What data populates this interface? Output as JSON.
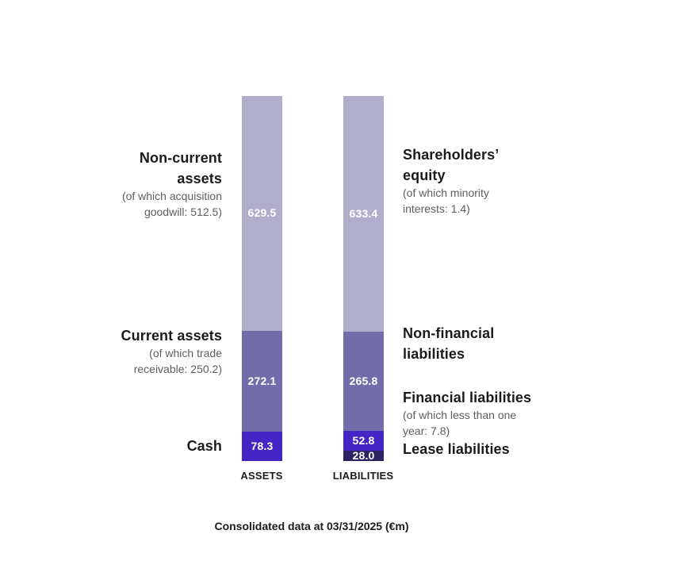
{
  "chart_data": {
    "type": "bar",
    "subtype": "stacked-column-balance-sheet",
    "caption": "Consolidated data at 03/31/2025 (€m)",
    "unit": "€m",
    "legend_position": "none",
    "grid": false,
    "categories": [
      "ASSETS",
      "LIABILITIES"
    ],
    "total_per_column": 980,
    "bars": [
      {
        "category": "ASSETS",
        "segments": [
          {
            "label": "Non-current assets",
            "note": "(of which acquisition goodwill: 512.5)",
            "value": 629.5,
            "color": "#b1aecb"
          },
          {
            "label": "Current assets",
            "note": "(of which trade receivable: 250.2)",
            "value": 272.1,
            "color": "#736cab"
          },
          {
            "label": "Cash",
            "value": 78.3,
            "color": "#4326c3"
          }
        ]
      },
      {
        "category": "LIABILITIES",
        "segments": [
          {
            "label": "Shareholders’ equity",
            "note": "(of which minority interests: 1.4)",
            "value": 633.4,
            "color": "#b1aecb"
          },
          {
            "label": "Non-financial liabilities",
            "value": 265.8,
            "color": "#736cab"
          },
          {
            "label": "Financial liabilities",
            "note": "(of which less than one year: 7.8)",
            "value": 52.8,
            "color": "#4326c3"
          },
          {
            "label": "Lease liabilities",
            "value": 28.0,
            "color": "#2d2263"
          }
        ]
      }
    ],
    "colors": {
      "light_purple": "#b1aecb",
      "medium_purple": "#736cab",
      "bright_purple": "#4326c3",
      "dark_purple": "#2d2263",
      "value_text": "#ffffff",
      "title_text": "#1b1b1b",
      "note_text": "#5e5e5e"
    }
  },
  "annotations": {
    "left": {
      "non_current": {
        "title": "Non-current\nassets",
        "note": "(of which acquisition\ngoodwill: 512.5)"
      },
      "current": {
        "title": "Current assets",
        "note": "(of which trade\nreceivable: 250.2)"
      },
      "cash": {
        "title": "Cash"
      }
    },
    "right": {
      "equity": {
        "title": "Shareholders’\nequity",
        "note": "(of which minority\ninterests: 1.4)"
      },
      "non_financial": {
        "title": "Non-financial\nliabilities"
      },
      "financial": {
        "title": "Financial liabilities",
        "note": "(of which less than one\nyear: 7.8)"
      },
      "lease": {
        "title": "Lease liabilities"
      }
    }
  }
}
